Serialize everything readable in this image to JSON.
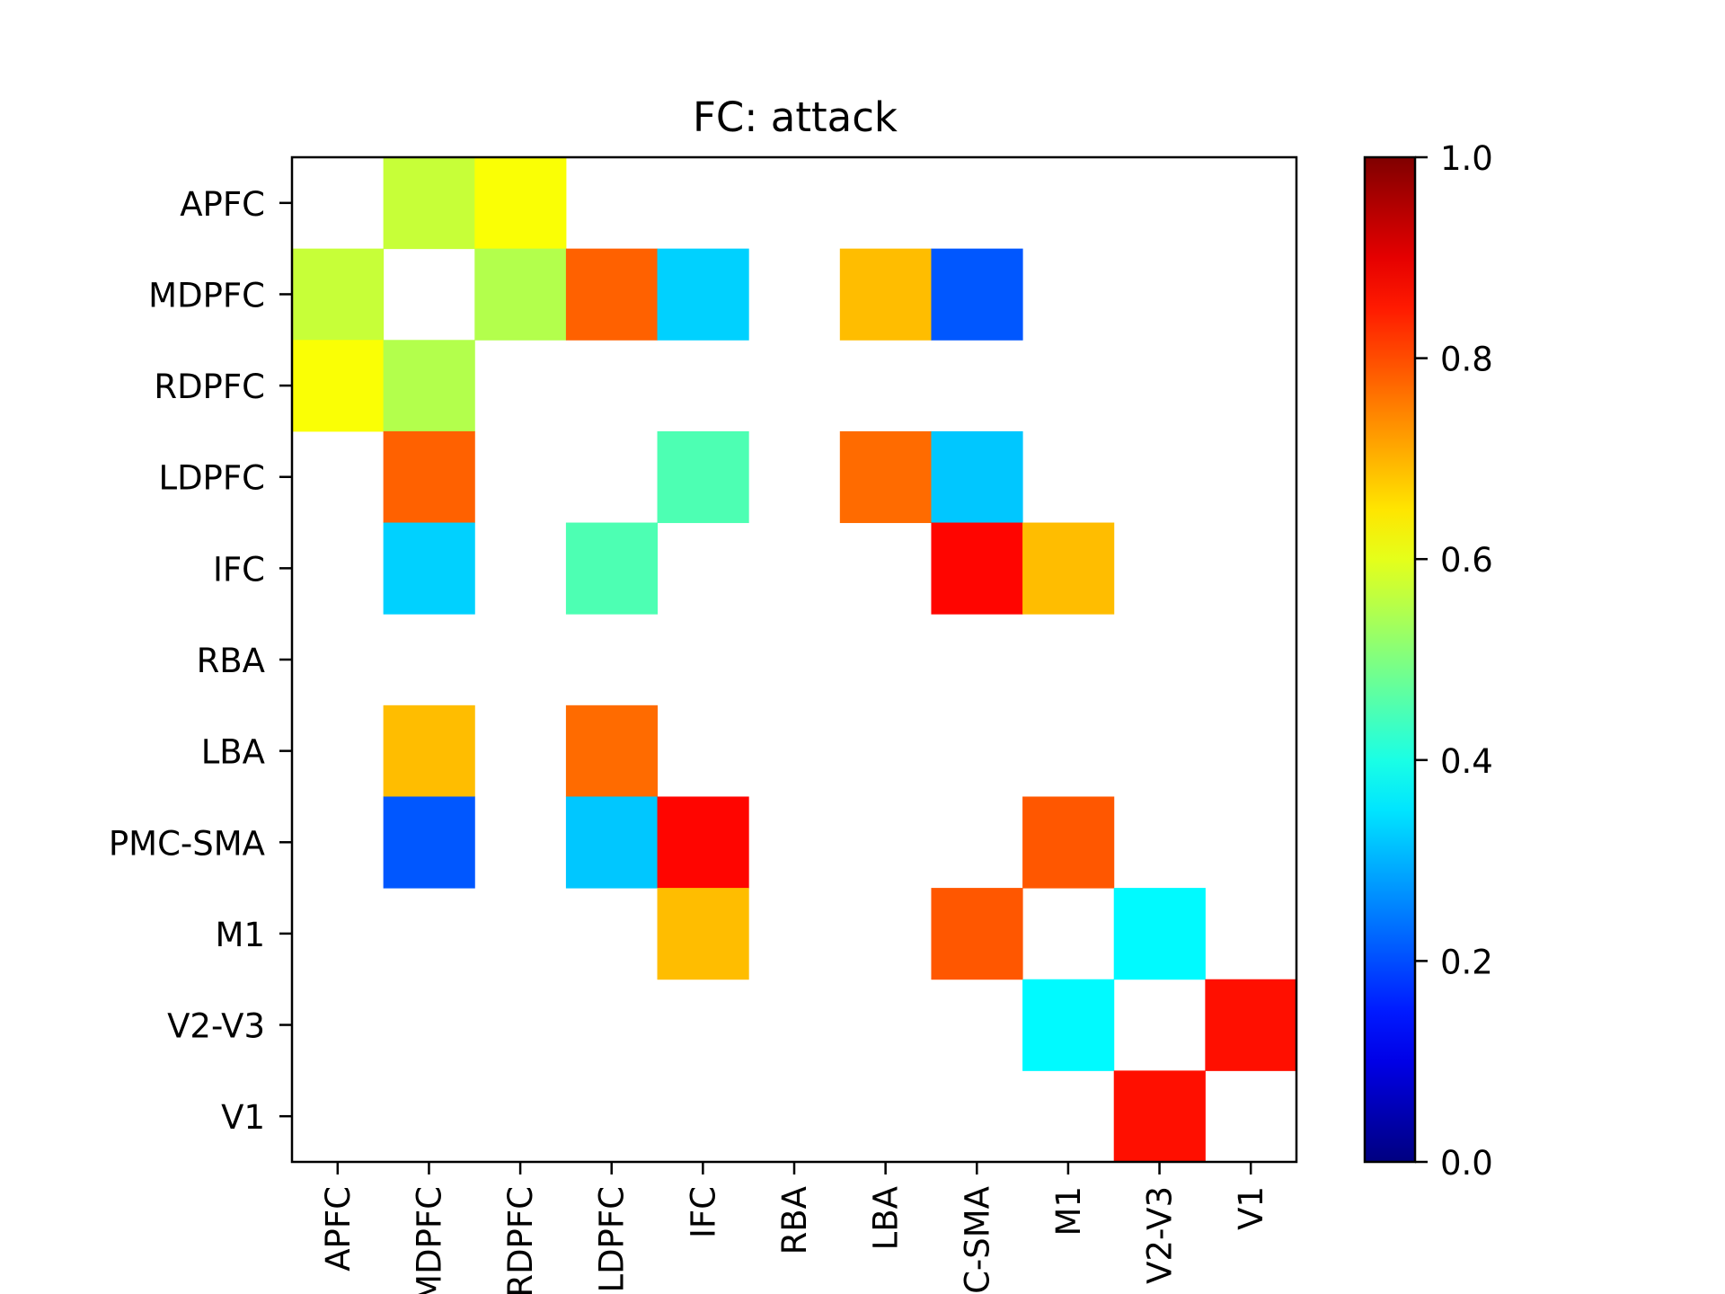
{
  "chart_data": {
    "type": "heatmap",
    "title": "FC: attack",
    "row_labels": [
      "APFC",
      "MDPFC",
      "RDPFC",
      "LDPFC",
      "IFC",
      "RBA",
      "LBA",
      "PMC-SMA",
      "M1",
      "V2-V3",
      "V1"
    ],
    "col_labels": [
      "APFC",
      "MDPFC",
      "RDPFC",
      "LDPFC",
      "IFC",
      "RBA",
      "LBA",
      "PMC-SMA",
      "M1",
      "V2-V3",
      "V1"
    ],
    "values": [
      [
        null,
        0.57,
        0.62,
        null,
        null,
        null,
        null,
        null,
        null,
        null,
        null
      ],
      [
        0.57,
        null,
        0.55,
        0.78,
        0.33,
        null,
        0.69,
        0.21,
        null,
        null,
        null
      ],
      [
        0.62,
        0.55,
        null,
        null,
        null,
        null,
        null,
        null,
        null,
        null,
        null
      ],
      [
        null,
        0.78,
        null,
        null,
        0.45,
        null,
        0.77,
        0.32,
        null,
        null,
        null
      ],
      [
        null,
        0.33,
        null,
        0.45,
        null,
        null,
        null,
        0.87,
        0.69,
        null,
        null
      ],
      [
        null,
        null,
        null,
        null,
        null,
        null,
        null,
        null,
        null,
        null,
        null
      ],
      [
        null,
        0.69,
        null,
        0.77,
        null,
        null,
        null,
        null,
        null,
        null,
        null
      ],
      [
        null,
        0.21,
        null,
        0.32,
        0.87,
        null,
        null,
        null,
        0.79,
        null,
        null
      ],
      [
        null,
        null,
        null,
        null,
        0.69,
        null,
        null,
        0.79,
        null,
        0.37,
        null
      ],
      [
        null,
        null,
        null,
        null,
        null,
        null,
        null,
        null,
        0.37,
        null,
        0.86
      ],
      [
        null,
        null,
        null,
        null,
        null,
        null,
        null,
        null,
        null,
        0.86,
        null
      ]
    ],
    "colormap": "jet",
    "vmin": 0.0,
    "vmax": 1.0,
    "colorbar_ticks": [
      "0.0",
      "0.2",
      "0.4",
      "0.6",
      "0.8",
      "1.0"
    ],
    "grid": false
  }
}
